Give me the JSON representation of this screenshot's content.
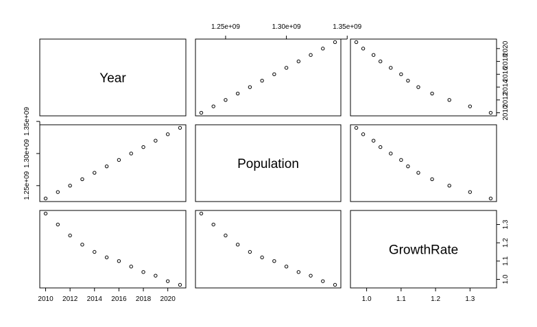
{
  "chart_data": {
    "type": "scatter",
    "subtype": "scatterplot-matrix",
    "variables": [
      "Year",
      "Population",
      "GrowthRate"
    ],
    "observations": {
      "Year": [
        2010,
        2011,
        2012,
        2013,
        2014,
        2015,
        2016,
        2017,
        2018,
        2019,
        2020,
        2021
      ],
      "Population": [
        1230000000,
        1240000000,
        1250000000,
        1260000000,
        1270000000,
        1280000000,
        1290000000,
        1300000000,
        1310000000,
        1320000000,
        1330000000,
        1340000000
      ],
      "GrowthRate": [
        1.36,
        1.3,
        1.24,
        1.19,
        1.15,
        1.12,
        1.1,
        1.07,
        1.04,
        1.02,
        0.99,
        0.97
      ]
    },
    "axis_ranges": {
      "Year": [
        2010,
        2021
      ],
      "Population": [
        1230000000,
        1340000000
      ],
      "GrowthRate": [
        0.97,
        1.36
      ]
    },
    "ticks": {
      "Year": [
        2010,
        2012,
        2014,
        2016,
        2018,
        2020
      ],
      "Population": [
        1250000000,
        1300000000,
        1350000000
      ],
      "GrowthRate": [
        1.0,
        1.1,
        1.2,
        1.3
      ]
    },
    "tick_labels": {
      "Year": [
        "2010",
        "2012",
        "2014",
        "2016",
        "2018",
        "2020"
      ],
      "Population": [
        "1.25e+09",
        "1.30e+09",
        "1.35e+09"
      ],
      "GrowthRate": [
        "1.0",
        "1.1",
        "1.2",
        "1.3"
      ]
    },
    "grid": false,
    "legend": "none",
    "point_style": "open-circle",
    "colors": {
      "points": "#000000",
      "frame": "#000000",
      "background": "#ffffff"
    }
  }
}
